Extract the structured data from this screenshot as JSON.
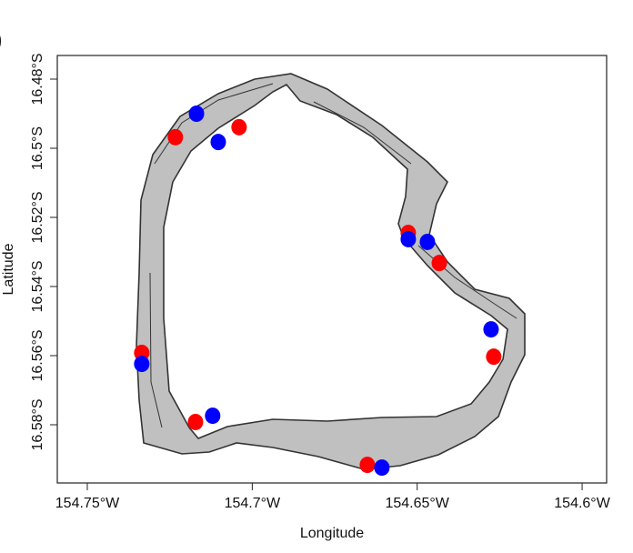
{
  "chart_data": {
    "type": "scatter",
    "title": "",
    "panel_label": ")",
    "xlabel": "Longitude",
    "ylabel": "Latitude",
    "xlim": [
      154.759,
      154.593
    ],
    "ylim": [
      16.474,
      16.6
    ],
    "x_ticks": [
      154.75,
      154.7,
      154.65,
      154.6
    ],
    "x_tick_labels": [
      "154.75°W",
      "154.7°W",
      "154.65°W",
      "154.6°W"
    ],
    "y_ticks": [
      16.48,
      16.5,
      16.52,
      16.54,
      16.56,
      16.58
    ],
    "y_tick_labels": [
      "16.48°S",
      "16.5°S",
      "16.52°S",
      "16.54°S",
      "16.56°S",
      "16.58°S"
    ],
    "grid": false,
    "background_layer": "atoll land outline (grey fill)",
    "series": [
      {
        "name": "red",
        "color": "#ff0000",
        "points": [
          [
            154.7233,
            16.4968
          ],
          [
            154.704,
            16.4939
          ],
          [
            154.6527,
            16.5245
          ],
          [
            154.6433,
            16.5332
          ],
          [
            154.6268,
            16.5603
          ],
          [
            154.7335,
            16.5592
          ],
          [
            154.7172,
            16.5792
          ],
          [
            154.6651,
            16.5916
          ]
        ]
      },
      {
        "name": "blue",
        "color": "#0000ff",
        "points": [
          [
            154.7169,
            16.49
          ],
          [
            154.7103,
            16.4982
          ],
          [
            154.6527,
            16.5263
          ],
          [
            154.6469,
            16.5271
          ],
          [
            154.6276,
            16.5524
          ],
          [
            154.7335,
            16.5624
          ],
          [
            154.712,
            16.5774
          ],
          [
            154.6607,
            16.5924
          ]
        ]
      }
    ],
    "colors": {
      "land": "#c0c0c0",
      "outline": "#333333"
    }
  }
}
